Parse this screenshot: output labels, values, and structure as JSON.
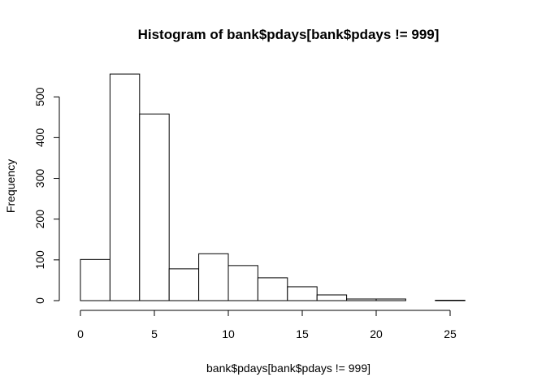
{
  "chart_data": {
    "type": "bar",
    "title": "Histogram of bank$pdays[bank$pdays != 999]",
    "xlabel": "bank$pdays[bank$pdays != 999]",
    "ylabel": "Frequency",
    "bins": [
      {
        "start": 0,
        "end": 2,
        "count": 101
      },
      {
        "start": 2,
        "end": 4,
        "count": 556
      },
      {
        "start": 4,
        "end": 6,
        "count": 458
      },
      {
        "start": 6,
        "end": 8,
        "count": 78
      },
      {
        "start": 8,
        "end": 10,
        "count": 115
      },
      {
        "start": 10,
        "end": 12,
        "count": 86
      },
      {
        "start": 12,
        "end": 14,
        "count": 56
      },
      {
        "start": 14,
        "end": 16,
        "count": 34
      },
      {
        "start": 16,
        "end": 18,
        "count": 14
      },
      {
        "start": 18,
        "end": 20,
        "count": 4
      },
      {
        "start": 20,
        "end": 22,
        "count": 4
      },
      {
        "start": 22,
        "end": 24,
        "count": 0
      },
      {
        "start": 24,
        "end": 26,
        "count": 1
      },
      {
        "start": 26,
        "end": 28,
        "count": 0
      }
    ],
    "x_ticks": [
      0,
      5,
      10,
      15,
      20,
      25
    ],
    "y_ticks": [
      0,
      100,
      200,
      300,
      400,
      500
    ],
    "xlim": [
      0,
      28
    ],
    "ylim": [
      0,
      556
    ],
    "grid": false
  }
}
